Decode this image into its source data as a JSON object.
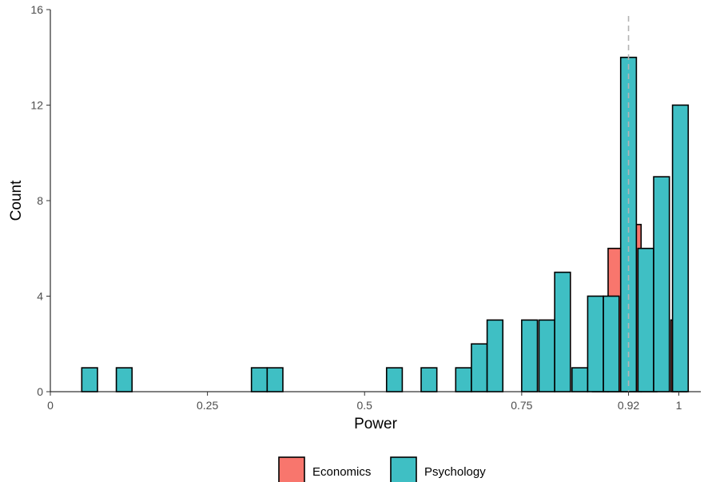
{
  "chart_data": {
    "type": "bar",
    "xlabel": "Power",
    "ylabel": "Count",
    "xlim": [
      0,
      1.035
    ],
    "ylim": [
      0,
      16
    ],
    "x_ticks": [
      {
        "value": 0,
        "label": "0"
      },
      {
        "value": 0.25,
        "label": "0.25"
      },
      {
        "value": 0.5,
        "label": "0.5"
      },
      {
        "value": 0.75,
        "label": "0.75"
      },
      {
        "value": 0.92,
        "label": "0.92"
      },
      {
        "value": 1,
        "label": "1"
      }
    ],
    "y_ticks": [
      {
        "value": 0,
        "label": "0"
      },
      {
        "value": 4,
        "label": "4"
      },
      {
        "value": 8,
        "label": "8"
      },
      {
        "value": 12,
        "label": "12"
      },
      {
        "value": 16,
        "label": "16"
      }
    ],
    "reference_line": {
      "x": 0.92,
      "style": "dashed",
      "color": "#b3b3b3"
    },
    "bar_group_width": 0.05,
    "legend_position": "bottom",
    "grid": false,
    "series": [
      {
        "name": "Economics",
        "color": "#F8766D",
        "bars": [
          {
            "x": 0.9,
            "value": 6
          },
          {
            "x": 0.9275,
            "value": 7
          },
          {
            "x": 1.0,
            "value": 3
          },
          {
            "x": 0.875,
            "value": 1
          },
          {
            "x": 0.9525,
            "value": 1
          }
        ]
      },
      {
        "name": "Psychology",
        "color": "#3FBFC4",
        "bars": [
          {
            "x": 0.0625,
            "value": 1
          },
          {
            "x": 0.1175,
            "value": 1
          },
          {
            "x": 0.3325,
            "value": 1
          },
          {
            "x": 0.3575,
            "value": 1
          },
          {
            "x": 0.5475,
            "value": 1
          },
          {
            "x": 0.6025,
            "value": 1
          },
          {
            "x": 0.6575,
            "value": 1
          },
          {
            "x": 0.6825,
            "value": 2
          },
          {
            "x": 0.7075,
            "value": 3
          },
          {
            "x": 0.7625,
            "value": 3
          },
          {
            "x": 0.79,
            "value": 3
          },
          {
            "x": 0.815,
            "value": 5
          },
          {
            "x": 0.8425,
            "value": 1
          },
          {
            "x": 0.8675,
            "value": 4
          },
          {
            "x": 0.8925,
            "value": 4
          },
          {
            "x": 0.92,
            "value": 14
          },
          {
            "x": 0.9475,
            "value": 6
          },
          {
            "x": 0.9725,
            "value": 9
          },
          {
            "x": 1.0025,
            "value": 12
          }
        ]
      }
    ]
  }
}
